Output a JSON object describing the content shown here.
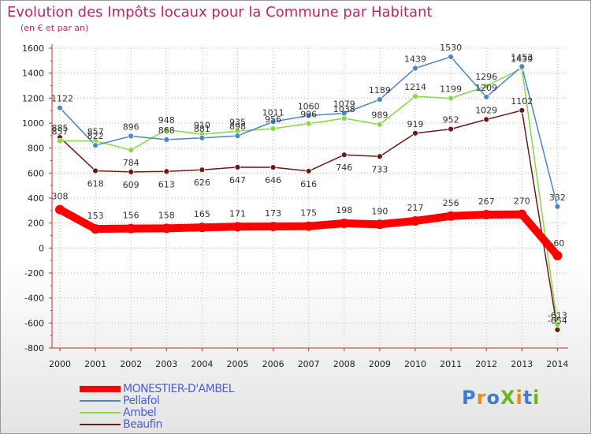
{
  "chart_data": {
    "type": "line",
    "title": "Evolution des Impôts locaux pour la Commune par Habitant",
    "subtitle": "(en € et par an)",
    "categories": [
      "2000",
      "2001",
      "2002",
      "2003",
      "2004",
      "2005",
      "2006",
      "2007",
      "2008",
      "2009",
      "2010",
      "2011",
      "2012",
      "2013",
      "2014"
    ],
    "ylim": [
      -800,
      1600
    ],
    "yticks": [
      -800,
      -600,
      -400,
      -200,
      0,
      200,
      400,
      600,
      800,
      1000,
      1200,
      1400,
      1600
    ],
    "grid": true,
    "series": [
      {
        "name": "MONESTIER-D'AMBEL",
        "color": "#ff0000",
        "values": [
          308,
          153,
          156,
          158,
          165,
          171,
          173,
          175,
          198,
          190,
          217,
          256,
          267,
          270,
          -60
        ]
      },
      {
        "name": "Pellafol",
        "color": "#4a86c8",
        "values": [
          1122,
          822,
          896,
          868,
          881,
          898,
          1011,
          1060,
          1079,
          1189,
          1439,
          1530,
          1209,
          1453,
          332
        ]
      },
      {
        "name": "Ambel",
        "color": "#88d840",
        "values": [
          857,
          857,
          784,
          948,
          910,
          935,
          956,
          996,
          1038,
          989,
          1214,
          1199,
          1296,
          1439,
          -613
        ]
      },
      {
        "name": "Beaufin",
        "color": "#6b1a1a",
        "values": [
          885,
          618,
          609,
          613,
          626,
          647,
          646,
          616,
          746,
          733,
          919,
          952,
          1029,
          1102,
          -654
        ]
      }
    ]
  },
  "logo": {
    "text": "ProXiti",
    "letters": [
      "P",
      "r",
      "o",
      "X",
      "i",
      "t",
      "i"
    ],
    "colors": [
      "#3a7fd0",
      "#f08a10",
      "#3a7fd0",
      "#6ab820",
      "#f08a10",
      "#3a7fd0",
      "#6ab820"
    ]
  }
}
